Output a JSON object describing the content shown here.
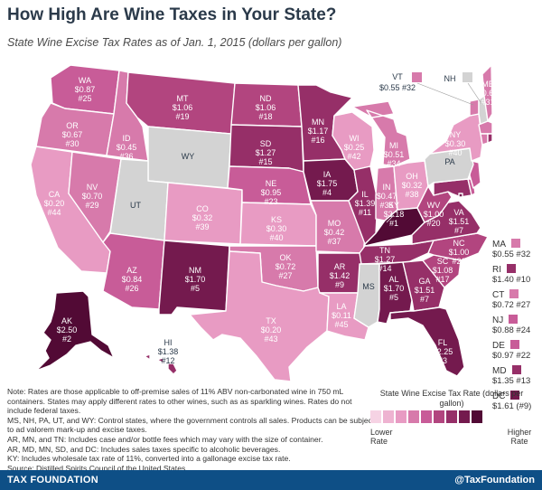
{
  "title": "How High Are Wine Taxes in Your State?",
  "subtitle": "State Wine Excise Tax Rates as of Jan. 1, 2015 (dollars per gallon)",
  "colors": {
    "c1": "#e89bc3",
    "c2": "#d77aab",
    "c3": "#c85c98",
    "c4": "#b2457f",
    "c5": "#962f68",
    "c6": "#741a4e",
    "c7": "#520a35",
    "control": "#d3d3d3",
    "footer": "#0e4f86"
  },
  "states": {
    "WA": {
      "abbr": "WA",
      "rate": "$0.87",
      "rank": "#25"
    },
    "OR": {
      "abbr": "OR",
      "rate": "$0.67",
      "rank": "#30"
    },
    "CA": {
      "abbr": "CA",
      "rate": "$0.20",
      "rank": "#44"
    },
    "NV": {
      "abbr": "NV",
      "rate": "$0.70",
      "rank": "#29"
    },
    "ID": {
      "abbr": "ID",
      "rate": "$0.45",
      "rank": "#36"
    },
    "MT": {
      "abbr": "MT",
      "rate": "$1.06",
      "rank": "#19"
    },
    "WY": {
      "abbr": "WY"
    },
    "UT": {
      "abbr": "UT"
    },
    "AZ": {
      "abbr": "AZ",
      "rate": "$0.84",
      "rank": "#26"
    },
    "CO": {
      "abbr": "CO",
      "rate": "$0.32",
      "rank": "#39"
    },
    "NM": {
      "abbr": "NM",
      "rate": "$1.70",
      "rank": "#5"
    },
    "ND": {
      "abbr": "ND",
      "rate": "$1.06",
      "rank": "#18"
    },
    "SD": {
      "abbr": "SD",
      "rate": "$1.27",
      "rank": "#15"
    },
    "NE": {
      "abbr": "NE",
      "rate": "$0.95",
      "rank": "#23"
    },
    "KS": {
      "abbr": "KS",
      "rate": "$0.30",
      "rank": "#40"
    },
    "OK": {
      "abbr": "OK",
      "rate": "$0.72",
      "rank": "#27"
    },
    "TX": {
      "abbr": "TX",
      "rate": "$0.20",
      "rank": "#43"
    },
    "MN": {
      "abbr": "MN",
      "rate": "$1.17",
      "rank": "#16"
    },
    "IA": {
      "abbr": "IA",
      "rate": "$1.75",
      "rank": "#4"
    },
    "MO": {
      "abbr": "MO",
      "rate": "$0.42",
      "rank": "#37"
    },
    "AR": {
      "abbr": "AR",
      "rate": "$1.42",
      "rank": "#9"
    },
    "LA": {
      "abbr": "LA",
      "rate": "$0.11",
      "rank": "#45"
    },
    "WI": {
      "abbr": "WI",
      "rate": "$0.25",
      "rank": "#42"
    },
    "IL": {
      "abbr": "IL",
      "rate": "$1.39",
      "rank": "#11"
    },
    "MI": {
      "abbr": "MI",
      "rate": "$0.51",
      "rank": "#34"
    },
    "IN": {
      "abbr": "IN",
      "rate": "$0.47",
      "rank": "#35"
    },
    "OH": {
      "abbr": "OH",
      "rate": "$0.32",
      "rank": "#38"
    },
    "KY": {
      "abbr": "KY",
      "rate": "$3.18",
      "rank": "#1"
    },
    "TN": {
      "abbr": "TN",
      "rate": "$1.27",
      "rank": "#14"
    },
    "MS": {
      "abbr": "MS"
    },
    "AL": {
      "abbr": "AL",
      "rate": "$1.70",
      "rank": "#5"
    },
    "GA": {
      "abbr": "GA",
      "rate": "$1.51",
      "rank": "#7"
    },
    "FL": {
      "abbr": "FL",
      "rate": "$2.25",
      "rank": "#3"
    },
    "SC": {
      "abbr": "SC",
      "rate": "$1.08",
      "rank": "#17"
    },
    "NC": {
      "abbr": "NC",
      "rate": "$1.00",
      "rank": "#21"
    },
    "VA": {
      "abbr": "VA",
      "rate": "$1.51",
      "rank": "#7"
    },
    "WV": {
      "abbr": "WV",
      "rate": "$1.00",
      "rank": "#20"
    },
    "PA": {
      "abbr": "PA"
    },
    "NY": {
      "abbr": "NY",
      "rate": "$0.30",
      "rank": "#40"
    },
    "ME": {
      "abbr": "ME",
      "rate": "$0.60",
      "rank": "#31"
    },
    "VT": {
      "abbr": "VT",
      "rate": "$0.55",
      "rank": "#32"
    },
    "NH": {
      "abbr": "NH"
    },
    "AK": {
      "abbr": "AK",
      "rate": "$2.50",
      "rank": "#2"
    },
    "HI": {
      "abbr": "HI",
      "rate": "$1.38",
      "rank": "#12"
    }
  },
  "side_states": [
    {
      "abbr": "MA",
      "value": "$0.55 #32",
      "color": "#d77aab"
    },
    {
      "abbr": "RI",
      "value": "$1.40 #10",
      "color": "#962f68"
    },
    {
      "abbr": "CT",
      "value": "$0.72 #27",
      "color": "#d77aab"
    },
    {
      "abbr": "NJ",
      "value": "$0.88 #24",
      "color": "#c85c98"
    },
    {
      "abbr": "DE",
      "value": "$0.97 #22",
      "color": "#c85c98"
    },
    {
      "abbr": "MD",
      "value": "$1.35 #13",
      "color": "#962f68"
    },
    {
      "abbr": "DC",
      "value": "$1.61 (#9)",
      "color": "#741a4e"
    }
  ],
  "notes": [
    "Note: Rates are those applicable to off-premise sales of 11% ABV non-carbonated wine in 750 mL containers. States may apply different rates to other wines, such as as sparkling wines. Rates do not include federal taxes.",
    "MS, NH, PA, UT, and WY: Control states, where the government controls all sales. Products can be subject to ad valorem mark-up and excise taxes.",
    "AR, MN, and TN: Includes case and/or bottle fees which may vary with the size of container.",
    "AR, MD, MN, SD, and DC: Includes sales taxes specific to alcoholic beverages.",
    "KY: Includes wholesale tax rate of 11%, converted into a gallonage excise tax rate.",
    "Source: Distilled Spirits Council of the United States."
  ],
  "legend": {
    "title": "State Wine Excise Tax Rate (dollars per gallon)",
    "low_label": "Lower Rate",
    "high_label": "Higher Rate",
    "swatches": [
      "#f6d3e4",
      "#eeb3d1",
      "#e89bc3",
      "#d77aab",
      "#c85c98",
      "#b2457f",
      "#962f68",
      "#741a4e",
      "#520a35"
    ]
  },
  "footer": {
    "left": "TAX FOUNDATION",
    "right": "@TaxFoundation"
  }
}
